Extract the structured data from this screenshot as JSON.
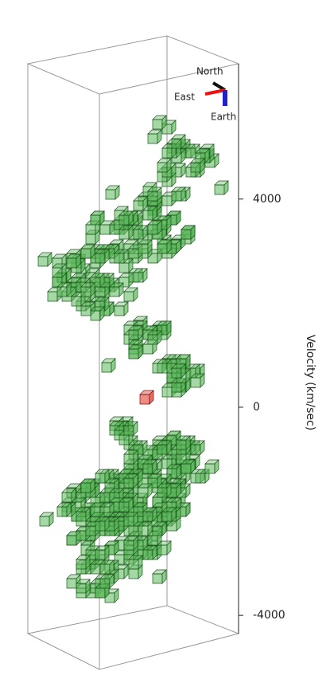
{
  "chart_data": {
    "type": "voxel-3d",
    "y_label": "Velocity (km/sec)",
    "ylim": [
      -4350,
      6600
    ],
    "yticks": [
      -4000,
      0,
      4000
    ],
    "compass": {
      "north": "North",
      "east": "East",
      "earth": "Earth"
    }
  }
}
